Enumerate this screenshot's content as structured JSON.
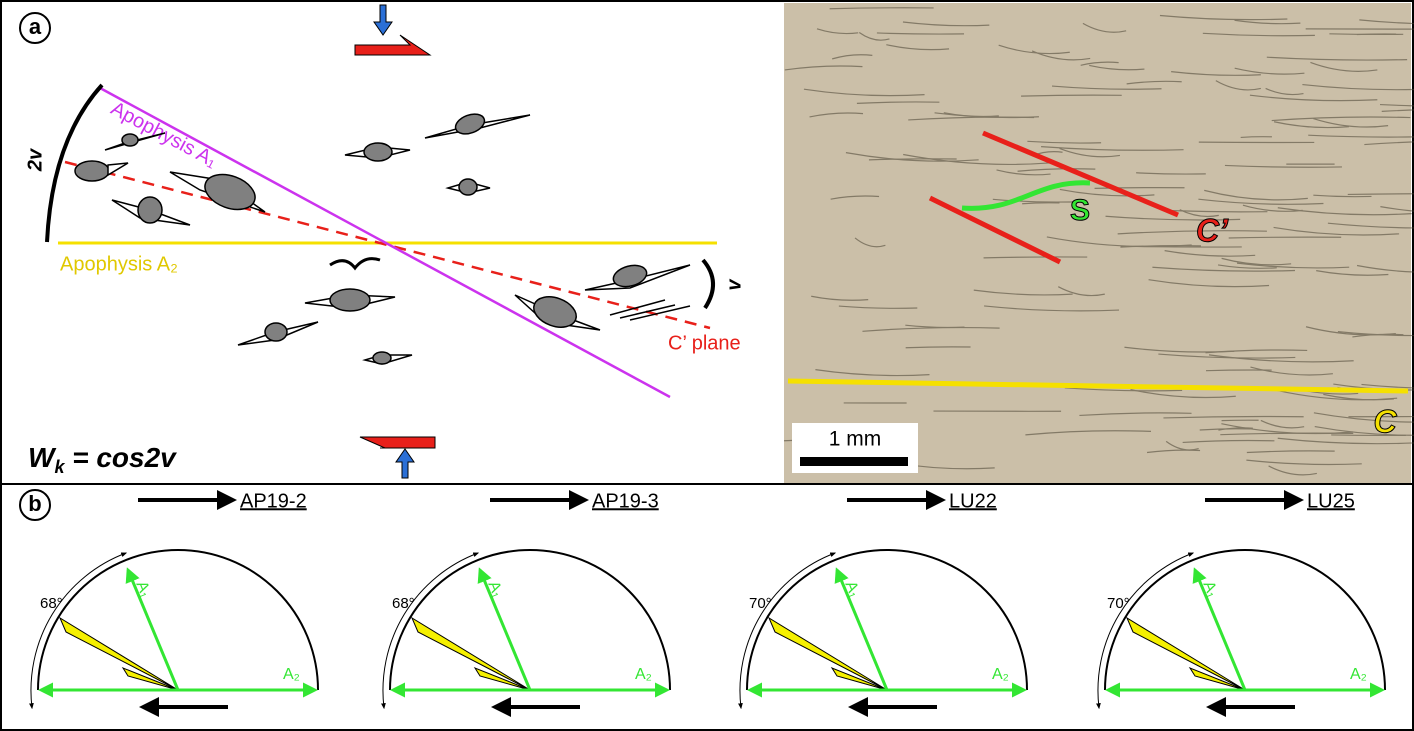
{
  "panel_a": {
    "label": "a",
    "apophysis_a1": "Apophysis A₁",
    "apophysis_a2": "Apophysis A₂",
    "angle_2v": "2v",
    "angle_v": "v",
    "c_prime_plane": "C’ plane",
    "wk_formula": "W",
    "wk_sub": "k",
    "wk_rest": " = cos2v"
  },
  "photo": {
    "s_label": "S",
    "c_prime_label": "C’",
    "c_label": "C",
    "scale_bar": "1 mm"
  },
  "panel_b": {
    "label": "b",
    "diagrams": [
      {
        "sample": "AP19-2",
        "angle": "68°",
        "a1": "A₁",
        "a2": "A₂"
      },
      {
        "sample": "AP19-3",
        "angle": "68°",
        "a1": "A₁",
        "a2": "A₂"
      },
      {
        "sample": "LU22",
        "angle": "70°",
        "a1": "A₁",
        "a2": "A₂"
      },
      {
        "sample": "LU25",
        "angle": "70°",
        "a1": "A₁",
        "a2": "A₂"
      }
    ]
  }
}
